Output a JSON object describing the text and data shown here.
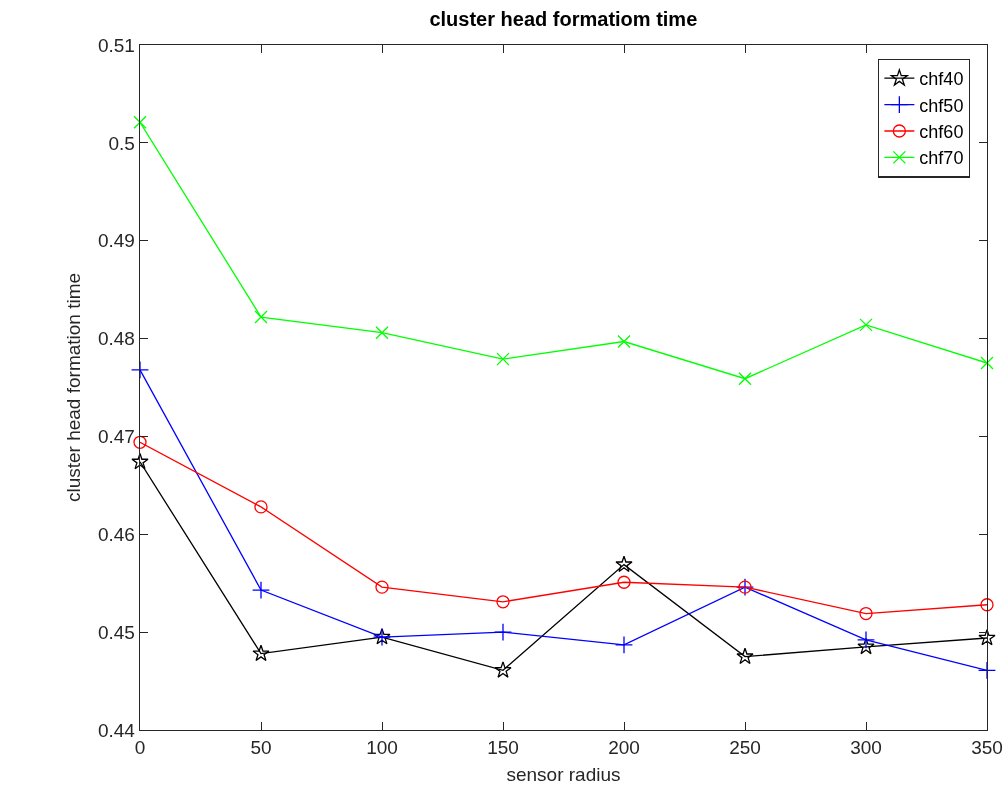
{
  "chart_data": {
    "type": "line",
    "title": "cluster head formatiom time",
    "xlabel": "sensor radius",
    "ylabel": "cluster head formation time",
    "x": [
      0,
      50,
      100,
      150,
      200,
      250,
      300,
      350
    ],
    "series": [
      {
        "name": "chf40",
        "color": "#000000",
        "marker": "star",
        "values": [
          0.4674,
          0.4478,
          0.4495,
          0.4461,
          0.4569,
          0.4475,
          0.4485,
          0.4494
        ]
      },
      {
        "name": "chf50",
        "color": "#0000ff",
        "marker": "cross",
        "values": [
          0.4768,
          0.4543,
          0.4495,
          0.45,
          0.4487,
          0.4546,
          0.4492,
          0.4461
        ]
      },
      {
        "name": "chf60",
        "color": "#ff0000",
        "marker": "circle",
        "values": [
          0.4694,
          0.4628,
          0.4546,
          0.4531,
          0.4551,
          0.4546,
          0.4519,
          0.4528
        ]
      },
      {
        "name": "chf70",
        "color": "#00ff00",
        "marker": "x",
        "values": [
          0.5021,
          0.4822,
          0.4806,
          0.4779,
          0.4797,
          0.4759,
          0.4814,
          0.4775
        ]
      }
    ],
    "xlim": [
      0,
      350
    ],
    "xticks": [
      0,
      50,
      100,
      150,
      200,
      250,
      300,
      350
    ],
    "ylim": [
      0.44,
      0.51
    ],
    "yticks": [
      0.44,
      0.45,
      0.46,
      0.47,
      0.48,
      0.49,
      0.5,
      0.51
    ],
    "grid": false,
    "legend": "top right",
    "line_style": "solid"
  }
}
